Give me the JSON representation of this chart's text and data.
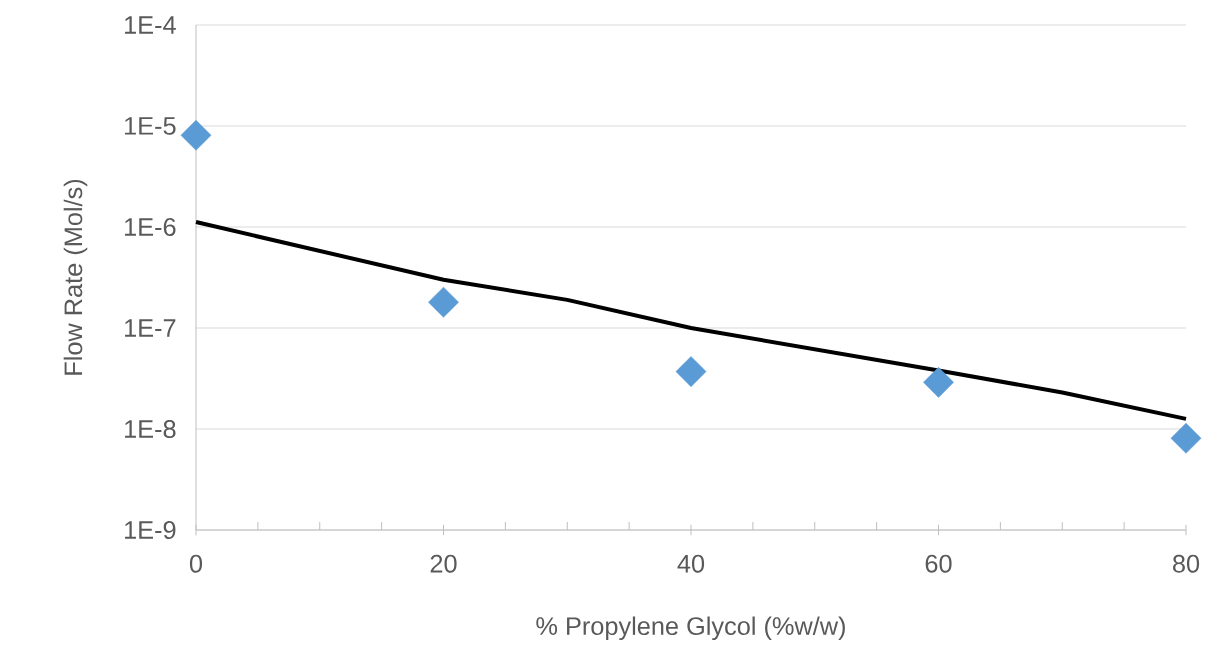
{
  "chart_data": {
    "type": "scatter",
    "xlabel": "% Propylene Glycol (%w/w)",
    "ylabel": "Flow Rate (Mol/s)",
    "log": "y",
    "grid": "y",
    "marker": "diamond",
    "xlim": [
      0,
      80
    ],
    "xticks": [
      0,
      20,
      40,
      60,
      80
    ],
    "ylim": [
      1e-09,
      0.0001
    ],
    "yticks": [
      {
        "value": 1e-09,
        "label": "1E-9"
      },
      {
        "value": 1e-08,
        "label": "1E-8"
      },
      {
        "value": 1e-07,
        "label": "1E-7"
      },
      {
        "value": 1e-06,
        "label": "1E-6"
      },
      {
        "value": 1e-05,
        "label": "1E-5"
      },
      {
        "value": 0.0001,
        "label": "1E-4"
      }
    ],
    "series": [
      {
        "color": "#5b9bd5",
        "x": [
          0,
          20,
          40,
          60,
          80
        ],
        "values": [
          8.1e-06,
          1.8e-07,
          3.7e-08,
          2.9e-08,
          8.1e-09
        ]
      },
      {
        "type": "line",
        "color": "#000000",
        "marker": "none",
        "line_style": "solid",
        "x": [
          0,
          20,
          30,
          40,
          60,
          70,
          80
        ],
        "values": [
          1.12e-06,
          3e-07,
          1.9e-07,
          1e-07,
          3.8e-08,
          2.3e-08,
          1.26e-08
        ]
      }
    ]
  }
}
